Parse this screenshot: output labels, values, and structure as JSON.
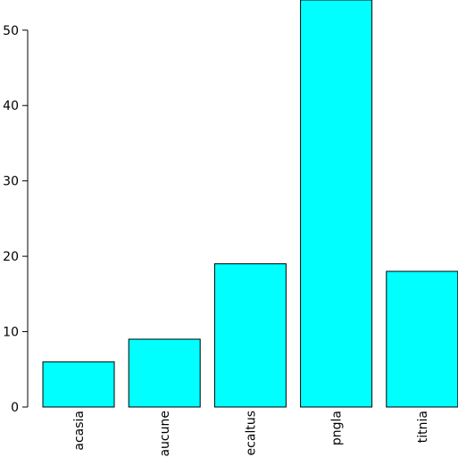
{
  "chart_data": {
    "type": "bar",
    "categories": [
      "acasia",
      "aucune",
      "ecaltus",
      "pngla",
      "titnia"
    ],
    "values": [
      6,
      9,
      19,
      54,
      18
    ],
    "title": "",
    "xlabel": "",
    "ylabel": "",
    "ylim": [
      0,
      54
    ],
    "yticks": [
      "0",
      "10",
      "20",
      "30",
      "40",
      "50"
    ],
    "bar_color": "#00ffff",
    "bar_edge_color": "#000000",
    "grid": false,
    "legend": "none"
  }
}
